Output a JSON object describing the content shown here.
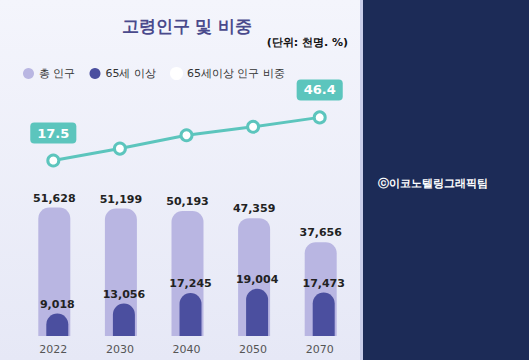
{
  "chart_data": {
    "type": "bar",
    "title": "고령인구 및 비중",
    "subtitle": "(단위: 천명. %)",
    "annotations": [
      "ⓒ이코노텔링그래픽팀"
    ],
    "categories": [
      "2022",
      "2030",
      "2040",
      "2050",
      "2070"
    ],
    "series": [
      {
        "name": "총 인구",
        "type": "bar",
        "color": "#b9b6e2",
        "values": [
          51628,
          51199,
          50193,
          47359,
          37656
        ],
        "value_labels": [
          "51,628",
          "51,199",
          "50,193",
          "47,359",
          "37,656"
        ]
      },
      {
        "name": "65세 이상",
        "type": "bar",
        "color": "#4b4f9f",
        "values": [
          9018,
          13056,
          17245,
          19004,
          17473
        ],
        "value_labels": [
          "9,018",
          "13,056",
          "17,245",
          "19,004",
          "17,473"
        ]
      },
      {
        "name": "65세이상 인구 비중",
        "type": "line",
        "axis": "y2",
        "color": "#5cc5bd",
        "marker": "circle",
        "values": [
          17.5,
          25.5,
          34.4,
          40.1,
          46.4
        ],
        "value_labels": [
          "17.5",
          null,
          null,
          null,
          "46.4"
        ]
      }
    ],
    "ylim": [
      0,
      90000
    ],
    "yticks": [
      0,
      30000,
      60000,
      90000
    ],
    "y2lim": [
      -100,
      50
    ],
    "y2ticks": [
      -100,
      -50,
      0,
      50
    ],
    "data_labels": true,
    "grid": false,
    "legend": "top",
    "tick_labels": "x"
  }
}
